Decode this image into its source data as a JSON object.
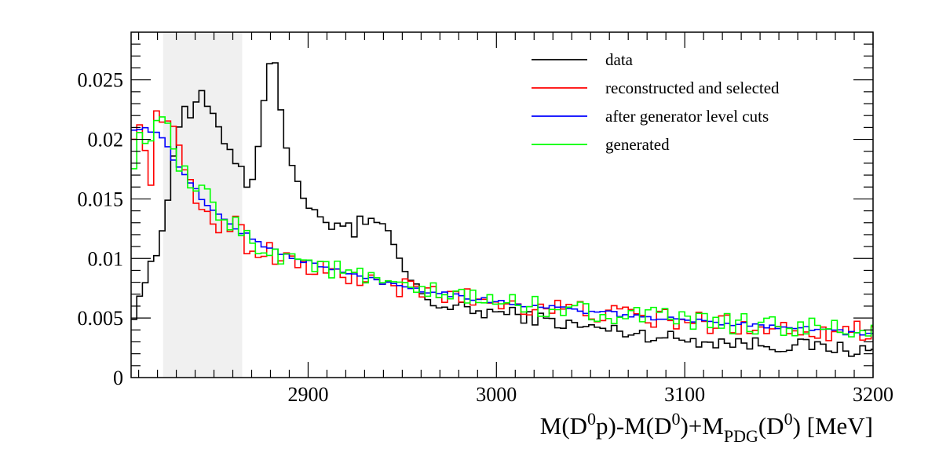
{
  "chart_data": {
    "type": "line",
    "xlabel": {
      "main": "M(D",
      "sup1": "0",
      "mid1": "p)-M(D",
      "sup2": "0",
      "mid2": ")+M",
      "sub": "PDG",
      "mid3": "(D",
      "sup3": "0",
      "end": ") [MeV]"
    },
    "ylabel": "",
    "xlim": [
      2806,
      3200
    ],
    "ylim": [
      0,
      0.029
    ],
    "xticks": [
      2900,
      3000,
      3100,
      3200
    ],
    "xtick_labels": [
      "2900",
      "3000",
      "3100",
      "3200"
    ],
    "yticks": [
      0,
      0.005,
      0.01,
      0.015,
      0.02,
      0.025
    ],
    "ytick_labels": [
      "0",
      "0.005",
      "0.01",
      "0.015",
      "0.02",
      "0.025"
    ],
    "shaded_region": {
      "x": [
        2823,
        2865
      ],
      "color": "#f0f0f0"
    },
    "bin_width": 3,
    "legend_position": "top-right",
    "series": [
      {
        "name": "data",
        "color": "#000000",
        "knots": [
          [
            2806,
            0.003
          ],
          [
            2808,
            0.0063
          ],
          [
            2812,
            0.0075
          ],
          [
            2816,
            0.009
          ],
          [
            2820,
            0.0105
          ],
          [
            2824,
            0.014
          ],
          [
            2828,
            0.0178
          ],
          [
            2831,
            0.021
          ],
          [
            2834,
            0.023
          ],
          [
            2838,
            0.022
          ],
          [
            2841,
            0.0227
          ],
          [
            2844,
            0.0245
          ],
          [
            2847,
            0.0222
          ],
          [
            2850,
            0.0215
          ],
          [
            2854,
            0.0205
          ],
          [
            2857,
            0.0195
          ],
          [
            2860,
            0.0188
          ],
          [
            2863,
            0.018
          ],
          [
            2866,
            0.0175
          ],
          [
            2868,
            0.016
          ],
          [
            2871,
            0.0168
          ],
          [
            2874,
            0.0195
          ],
          [
            2877,
            0.0245
          ],
          [
            2879,
            0.0265
          ],
          [
            2881,
            0.0275
          ],
          [
            2884,
            0.026
          ],
          [
            2887,
            0.019
          ],
          [
            2890,
            0.0185
          ],
          [
            2893,
            0.0175
          ],
          [
            2896,
            0.016
          ],
          [
            2899,
            0.0145
          ],
          [
            2902,
            0.0138
          ],
          [
            2905,
            0.0135
          ],
          [
            2910,
            0.0132
          ],
          [
            2915,
            0.0128
          ],
          [
            2918,
            0.0125
          ],
          [
            2920,
            0.0138
          ],
          [
            2922,
            0.012
          ],
          [
            2925,
            0.0113
          ],
          [
            2928,
            0.0135
          ],
          [
            2931,
            0.0128
          ],
          [
            2935,
            0.0132
          ],
          [
            2938,
            0.0125
          ],
          [
            2941,
            0.0122
          ],
          [
            2944,
            0.012
          ],
          [
            2946,
            0.011
          ],
          [
            2949,
            0.0095
          ],
          [
            2953,
            0.0085
          ],
          [
            2957,
            0.0075
          ],
          [
            2962,
            0.0068
          ],
          [
            2970,
            0.006
          ],
          [
            2980,
            0.0058
          ],
          [
            2990,
            0.0055
          ],
          [
            3000,
            0.0055
          ],
          [
            3010,
            0.0053
          ],
          [
            3020,
            0.005
          ],
          [
            3030,
            0.0047
          ],
          [
            3040,
            0.0044
          ],
          [
            3050,
            0.0042
          ],
          [
            3060,
            0.004
          ],
          [
            3070,
            0.0038
          ],
          [
            3080,
            0.0036
          ],
          [
            3090,
            0.0034
          ],
          [
            3100,
            0.0032
          ],
          [
            3110,
            0.0031
          ],
          [
            3120,
            0.003
          ],
          [
            3130,
            0.0029
          ],
          [
            3140,
            0.0028
          ],
          [
            3150,
            0.0027
          ],
          [
            3160,
            0.0027
          ],
          [
            3170,
            0.0026
          ],
          [
            3180,
            0.0025
          ],
          [
            3190,
            0.0023
          ],
          [
            3200,
            0.0022
          ]
        ],
        "noise": 0.0006
      },
      {
        "name": "reconstructed and selected",
        "color": "#ff0000",
        "knots": [
          [
            2806,
            0.021
          ],
          [
            2812,
            0.0205
          ],
          [
            2816,
            0.016
          ],
          [
            2819,
            0.0215
          ],
          [
            2822,
            0.022
          ],
          [
            2825,
            0.0228
          ],
          [
            2828,
            0.0205
          ],
          [
            2832,
            0.0185
          ],
          [
            2836,
            0.0165
          ],
          [
            2840,
            0.0148
          ],
          [
            2844,
            0.0145
          ],
          [
            2848,
            0.0138
          ],
          [
            2852,
            0.0128
          ],
          [
            2856,
            0.0125
          ],
          [
            2860,
            0.0135
          ],
          [
            2864,
            0.0125
          ],
          [
            2868,
            0.011
          ],
          [
            2872,
            0.0105
          ],
          [
            2878,
            0.0108
          ],
          [
            2884,
            0.0102
          ],
          [
            2890,
            0.0098
          ],
          [
            2895,
            0.0095
          ],
          [
            2900,
            0.0092
          ],
          [
            2910,
            0.0088
          ],
          [
            2920,
            0.0085
          ],
          [
            2930,
            0.0082
          ],
          [
            2940,
            0.0078
          ],
          [
            2950,
            0.0075
          ],
          [
            2960,
            0.0072
          ],
          [
            2970,
            0.007
          ],
          [
            2980,
            0.0068
          ],
          [
            2990,
            0.0066
          ],
          [
            3000,
            0.0064
          ],
          [
            3010,
            0.0062
          ],
          [
            3020,
            0.006
          ],
          [
            3030,
            0.0058
          ],
          [
            3040,
            0.0057
          ],
          [
            3050,
            0.0055
          ],
          [
            3060,
            0.0053
          ],
          [
            3070,
            0.0052
          ],
          [
            3080,
            0.005
          ],
          [
            3090,
            0.0049
          ],
          [
            3100,
            0.0047
          ],
          [
            3110,
            0.0046
          ],
          [
            3120,
            0.0045
          ],
          [
            3130,
            0.0044
          ],
          [
            3140,
            0.0043
          ],
          [
            3150,
            0.0042
          ],
          [
            3160,
            0.0041
          ],
          [
            3170,
            0.004
          ],
          [
            3180,
            0.004
          ],
          [
            3190,
            0.0039
          ],
          [
            3200,
            0.0039
          ]
        ],
        "noise": 0.0009
      },
      {
        "name": "after generator level cuts",
        "color": "#0000ff",
        "knots": [
          [
            2806,
            0.021
          ],
          [
            2815,
            0.0208
          ],
          [
            2822,
            0.0205
          ],
          [
            2826,
            0.019
          ],
          [
            2830,
            0.018
          ],
          [
            2835,
            0.0168
          ],
          [
            2840,
            0.0158
          ],
          [
            2845,
            0.0148
          ],
          [
            2850,
            0.014
          ],
          [
            2855,
            0.0133
          ],
          [
            2860,
            0.0127
          ],
          [
            2865,
            0.0122
          ],
          [
            2870,
            0.0117
          ],
          [
            2875,
            0.0112
          ],
          [
            2880,
            0.0108
          ],
          [
            2890,
            0.0102
          ],
          [
            2900,
            0.0097
          ],
          [
            2910,
            0.0092
          ],
          [
            2920,
            0.0088
          ],
          [
            2930,
            0.0084
          ],
          [
            2940,
            0.008
          ],
          [
            2950,
            0.0077
          ],
          [
            2960,
            0.0074
          ],
          [
            2970,
            0.0071
          ],
          [
            2980,
            0.0069
          ],
          [
            2990,
            0.0066
          ],
          [
            3000,
            0.0064
          ],
          [
            3010,
            0.0062
          ],
          [
            3020,
            0.006
          ],
          [
            3030,
            0.0059
          ],
          [
            3040,
            0.0057
          ],
          [
            3050,
            0.0055
          ],
          [
            3060,
            0.0054
          ],
          [
            3070,
            0.0052
          ],
          [
            3080,
            0.0051
          ],
          [
            3090,
            0.0049
          ],
          [
            3100,
            0.0048
          ],
          [
            3110,
            0.0047
          ],
          [
            3120,
            0.0046
          ],
          [
            3130,
            0.0045
          ],
          [
            3140,
            0.0044
          ],
          [
            3150,
            0.0043
          ],
          [
            3160,
            0.0042
          ],
          [
            3170,
            0.0041
          ],
          [
            3180,
            0.0039
          ],
          [
            3190,
            0.0037
          ],
          [
            3200,
            0.0036
          ]
        ],
        "noise": 0.0002
      },
      {
        "name": "generated",
        "color": "#00ff00",
        "knots": [
          [
            2806,
            0.0165
          ],
          [
            2808,
            0.019
          ],
          [
            2812,
            0.0205
          ],
          [
            2816,
            0.0202
          ],
          [
            2820,
            0.0208
          ],
          [
            2824,
            0.0212
          ],
          [
            2828,
            0.0195
          ],
          [
            2832,
            0.0175
          ],
          [
            2836,
            0.0165
          ],
          [
            2840,
            0.016
          ],
          [
            2844,
            0.0152
          ],
          [
            2848,
            0.0148
          ],
          [
            2852,
            0.0138
          ],
          [
            2856,
            0.0135
          ],
          [
            2860,
            0.013
          ],
          [
            2865,
            0.012
          ],
          [
            2870,
            0.0115
          ],
          [
            2875,
            0.011
          ],
          [
            2880,
            0.0106
          ],
          [
            2890,
            0.0102
          ],
          [
            2900,
            0.0098
          ],
          [
            2910,
            0.0092
          ],
          [
            2920,
            0.0088
          ],
          [
            2930,
            0.0083
          ],
          [
            2940,
            0.0078
          ],
          [
            2950,
            0.0074
          ],
          [
            2960,
            0.0072
          ],
          [
            2970,
            0.007
          ],
          [
            2980,
            0.0068
          ],
          [
            2990,
            0.0066
          ],
          [
            3000,
            0.0064
          ],
          [
            3010,
            0.0062
          ],
          [
            3020,
            0.006
          ],
          [
            3030,
            0.0059
          ],
          [
            3040,
            0.0057
          ],
          [
            3050,
            0.0055
          ],
          [
            3060,
            0.0054
          ],
          [
            3070,
            0.0052
          ],
          [
            3080,
            0.0051
          ],
          [
            3090,
            0.0049
          ],
          [
            3100,
            0.0048
          ],
          [
            3110,
            0.0047
          ],
          [
            3120,
            0.0046
          ],
          [
            3130,
            0.0045
          ],
          [
            3140,
            0.0044
          ],
          [
            3150,
            0.0043
          ],
          [
            3160,
            0.0042
          ],
          [
            3170,
            0.0041
          ],
          [
            3180,
            0.004
          ],
          [
            3190,
            0.0039
          ],
          [
            3200,
            0.0038
          ]
        ],
        "noise": 0.0009
      }
    ]
  }
}
